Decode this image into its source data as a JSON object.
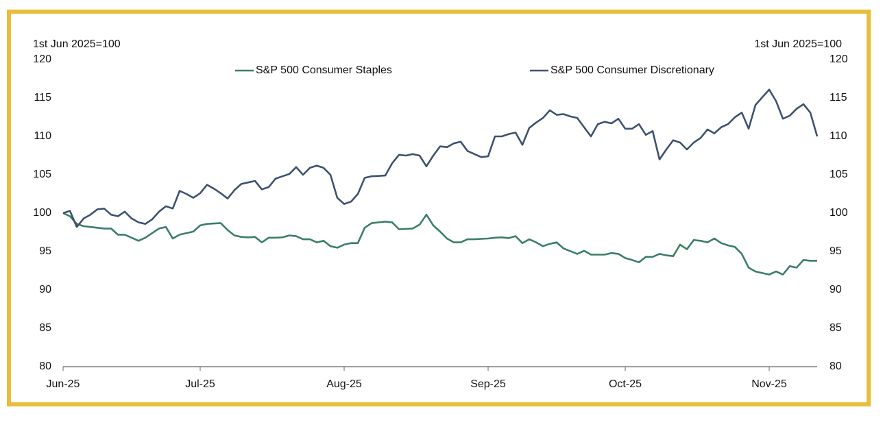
{
  "chart_data": {
    "type": "line",
    "y_label": "1st Jun 2025=100",
    "y2_label": "1st Jun 2025=100",
    "categories": [
      "Jun-25",
      null,
      null,
      null,
      null,
      null,
      null,
      null,
      null,
      null,
      null,
      null,
      null,
      null,
      null,
      null,
      null,
      null,
      null,
      null,
      "Jul-25",
      null,
      null,
      null,
      null,
      null,
      null,
      null,
      null,
      null,
      null,
      null,
      null,
      null,
      null,
      null,
      null,
      null,
      null,
      null,
      null,
      "Aug-25",
      null,
      null,
      null,
      null,
      null,
      null,
      null,
      null,
      null,
      null,
      null,
      null,
      null,
      null,
      null,
      null,
      null,
      null,
      null,
      null,
      "Sep-25",
      null,
      null,
      null,
      null,
      null,
      null,
      null,
      null,
      null,
      null,
      null,
      null,
      null,
      null,
      null,
      null,
      null,
      null,
      null,
      "Oct-25",
      null,
      null,
      null,
      null,
      null,
      null,
      null,
      null,
      null,
      null,
      null,
      null,
      null,
      null,
      null,
      null,
      null,
      null,
      null,
      null,
      "Nov-25",
      null,
      null,
      null,
      null,
      null,
      null,
      null
    ],
    "series": [
      {
        "name": "S&P 500 Consumer Staples",
        "color": "#3a7f62",
        "values": [
          100,
          99.6,
          98.6,
          98.3,
          98.2,
          98.1,
          98.0,
          98.0,
          97.2,
          97.2,
          96.8,
          96.4,
          96.8,
          97.4,
          98,
          98.2,
          96.7,
          97.2,
          97.4,
          97.6,
          98.4,
          98.6,
          98.65,
          98.7,
          97.8,
          97.1,
          96.9,
          96.85,
          96.9,
          96.2,
          96.8,
          96.8,
          96.85,
          97.1,
          97,
          96.6,
          96.6,
          96.2,
          96.4,
          95.7,
          95.5,
          95.9,
          96.1,
          96.1,
          98.1,
          98.7,
          98.8,
          98.9,
          98.8,
          97.9,
          97.95,
          98,
          98.5,
          99.8,
          98.4,
          97.6,
          96.7,
          96.2,
          96.2,
          96.6,
          96.6,
          96.65,
          96.7,
          96.8,
          96.85,
          96.75,
          97,
          96.1,
          96.6,
          96.2,
          95.7,
          96,
          96.2,
          95.4,
          95.05,
          94.7,
          95.1,
          94.6,
          94.6,
          94.6,
          94.8,
          94.7,
          94.15,
          93.9,
          93.6,
          94.3,
          94.3,
          94.7,
          94.5,
          94.4,
          95.9,
          95.3,
          96.5,
          96.4,
          96.2,
          96.7,
          96.1,
          95.8,
          95.6,
          94.7,
          92.9,
          92.4,
          92.2,
          92.0,
          92.4,
          92,
          93.1,
          92.9,
          93.9,
          93.8,
          93.8
        ]
      },
      {
        "name": "S&P 500 Consumer Discretionary",
        "color": "#3d5170",
        "values": [
          100,
          100.3,
          98.2,
          99.3,
          99.8,
          100.5,
          100.6,
          99.8,
          99.6,
          100.2,
          99.3,
          98.8,
          98.6,
          99.2,
          100.2,
          100.9,
          100.6,
          102.9,
          102.5,
          102,
          102.6,
          103.7,
          103.2,
          102.6,
          101.9,
          103,
          103.8,
          104,
          104.2,
          103.1,
          103.4,
          104.5,
          104.8,
          105.1,
          106,
          105,
          105.9,
          106.2,
          105.9,
          105,
          102,
          101.2,
          101.5,
          102.5,
          104.6,
          104.8,
          104.85,
          104.9,
          106.5,
          107.6,
          107.5,
          107.7,
          107.5,
          106.1,
          107.5,
          108.7,
          108.6,
          109.1,
          109.3,
          108.1,
          107.7,
          107.3,
          107.4,
          110,
          110,
          110.3,
          110.5,
          108.9,
          111.1,
          111.8,
          112.4,
          113.4,
          112.8,
          112.9,
          112.6,
          112.4,
          111.2,
          110,
          111.6,
          111.9,
          111.7,
          112.3,
          111,
          111,
          111.6,
          110.2,
          110.7,
          107,
          108.3,
          109.5,
          109.2,
          108.3,
          109.2,
          109.8,
          110.9,
          110.4,
          111.2,
          111.6,
          112.5,
          113.1,
          111,
          114.1,
          115.1,
          116.1,
          114.6,
          112.3,
          112.7,
          113.6,
          114.2,
          113.1,
          110
        ]
      }
    ],
    "ylim": [
      80,
      120
    ],
    "yticks": [
      80,
      85,
      90,
      95,
      100,
      105,
      110,
      115,
      120
    ],
    "y2lim": [
      80,
      120
    ],
    "y2ticks": [
      80,
      85,
      90,
      95,
      100,
      105,
      110,
      115,
      120
    ],
    "grid": false
  }
}
